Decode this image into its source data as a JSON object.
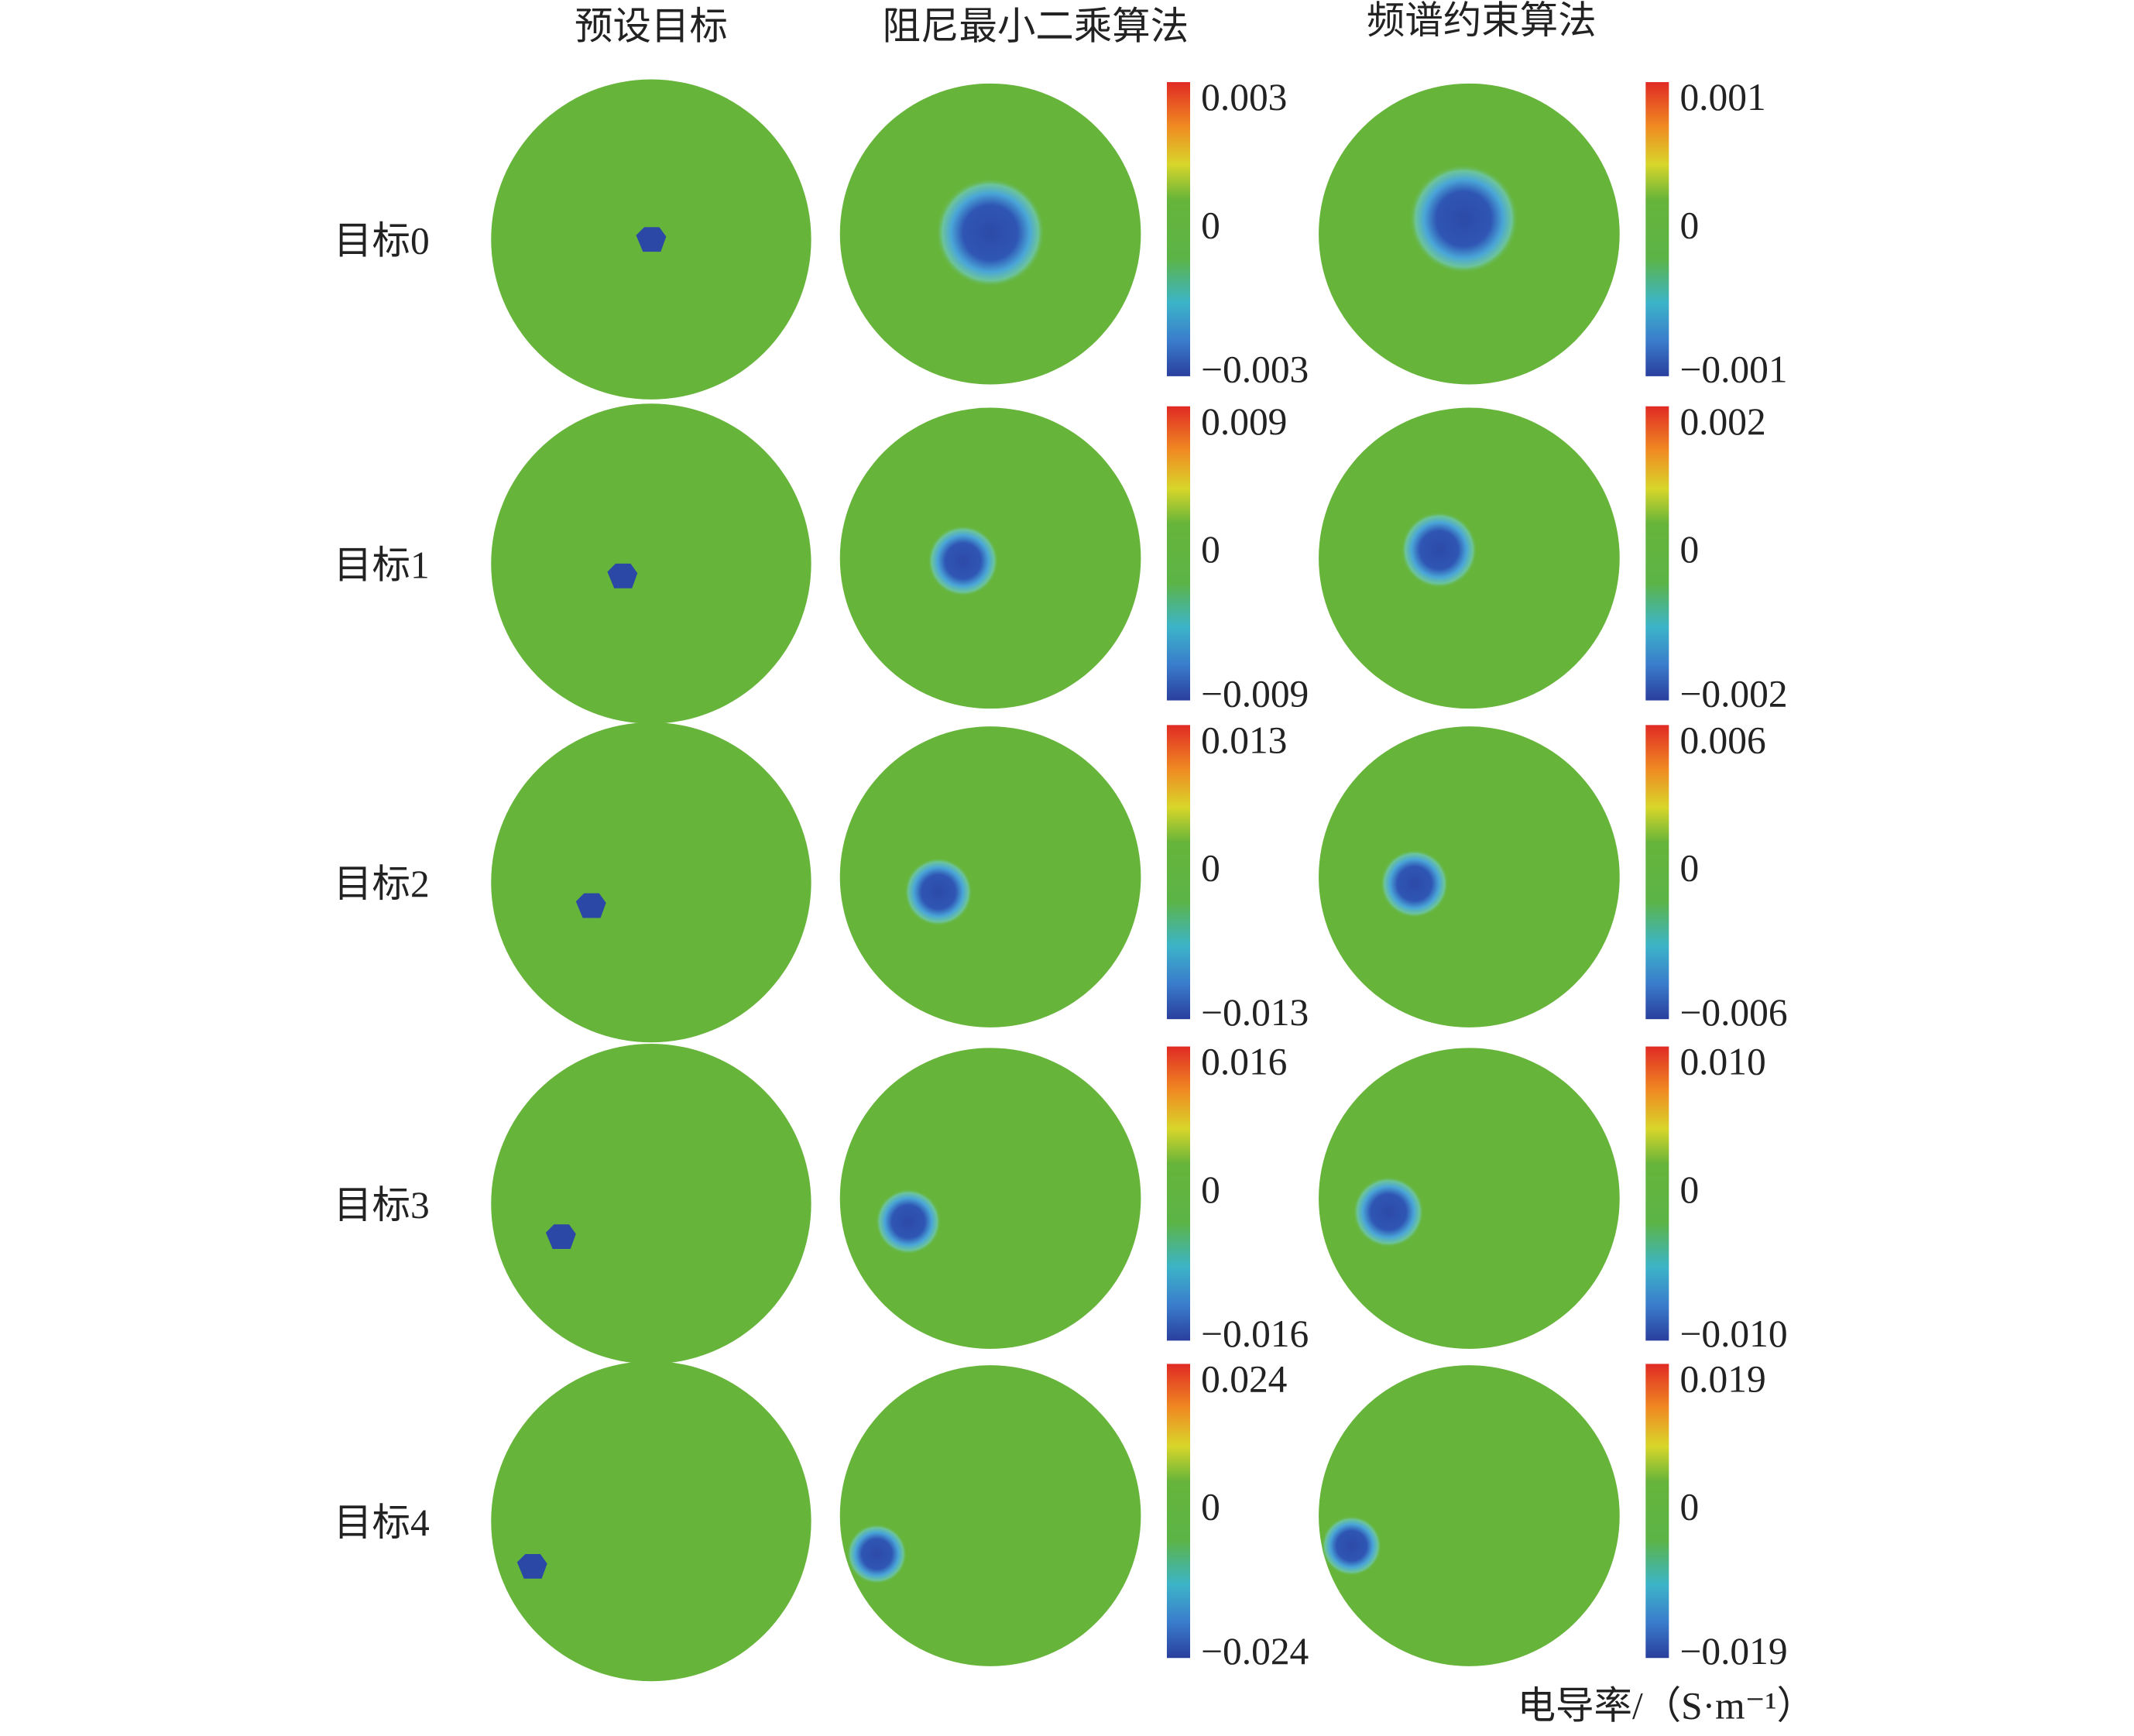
{
  "columns": [
    "预设目标",
    "阻尼最小二乘算法",
    "频谱约束算法"
  ],
  "rows": [
    {
      "label": "目标0",
      "colorbars": [
        {
          "max": "0.003",
          "mid": "0",
          "min": "−0.003"
        },
        {
          "max": "0.001",
          "mid": "0",
          "min": "−0.001"
        }
      ]
    },
    {
      "label": "目标1",
      "colorbars": [
        {
          "max": "0.009",
          "mid": "0",
          "min": "−0.009"
        },
        {
          "max": "0.002",
          "mid": "0",
          "min": "−0.002"
        }
      ]
    },
    {
      "label": "目标2",
      "colorbars": [
        {
          "max": "0.013",
          "mid": "0",
          "min": "−0.013"
        },
        {
          "max": "0.006",
          "mid": "0",
          "min": "−0.006"
        }
      ]
    },
    {
      "label": "目标3",
      "colorbars": [
        {
          "max": "0.016",
          "mid": "0",
          "min": "−0.016"
        },
        {
          "max": "0.010",
          "mid": "0",
          "min": "−0.010"
        }
      ]
    },
    {
      "label": "目标4",
      "colorbars": [
        {
          "max": "0.024",
          "mid": "0",
          "min": "−0.024"
        },
        {
          "max": "0.019",
          "mid": "0",
          "min": "−0.019"
        }
      ]
    }
  ],
  "unit_label": "电导率/（S·m⁻¹）"
}
